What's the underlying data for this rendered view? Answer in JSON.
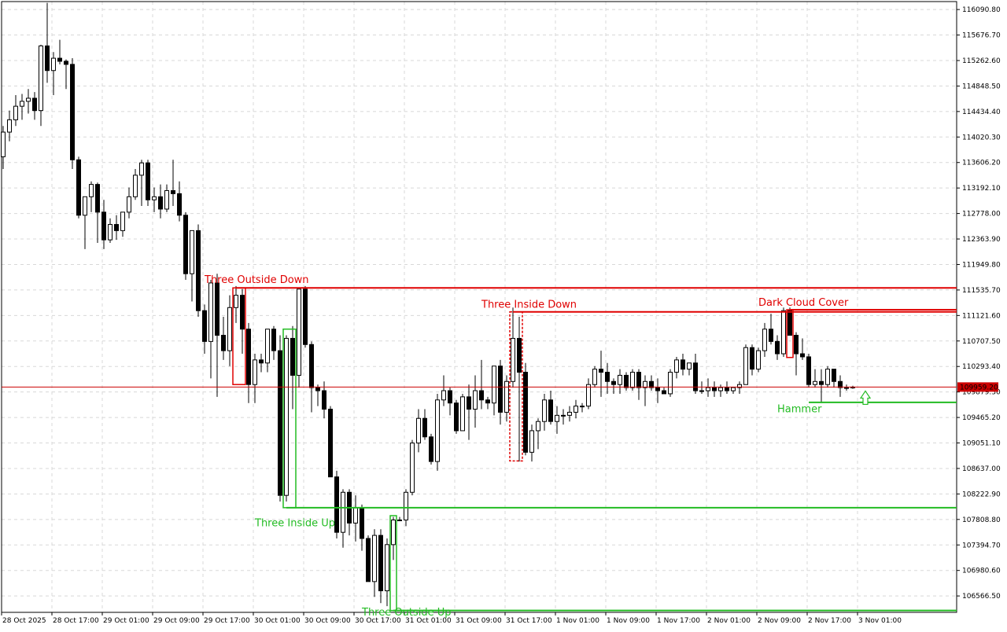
{
  "chart_data": {
    "type": "candlestick",
    "title": "",
    "xlabel": "",
    "ylabel": "",
    "ylim": [
      106300,
      116220
    ],
    "grid": true,
    "y_ticks": [
      "116090.80",
      "115676.70",
      "115262.60",
      "114848.50",
      "114434.40",
      "114020.30",
      "113606.20",
      "113192.10",
      "112778.00",
      "112363.90",
      "111949.80",
      "111535.70",
      "111121.60",
      "110707.50",
      "110293.40",
      "109879.30",
      "109465.20",
      "109051.10",
      "108637.00",
      "108222.90",
      "107808.80",
      "107394.70",
      "106980.60",
      "106566.50"
    ],
    "x_ticks": [
      "28 Oct 2025",
      "28 Oct 17:00",
      "29 Oct 01:00",
      "29 Oct 09:00",
      "29 Oct 17:00",
      "30 Oct 01:00",
      "30 Oct 09:00",
      "30 Oct 17:00",
      "31 Oct 01:00",
      "31 Oct 09:00",
      "31 Oct 17:00",
      "1 Nov 01:00",
      "1 Nov 09:00",
      "1 Nov 17:00",
      "2 Nov 01:00",
      "2 Nov 09:00",
      "2 Nov 17:00",
      "3 Nov 01:00"
    ],
    "current_price": "109959.20",
    "candles": [
      [
        113700,
        114200,
        113500,
        114100
      ],
      [
        114100,
        114450,
        113950,
        114300
      ],
      [
        114300,
        114700,
        114200,
        114520
      ],
      [
        114520,
        114720,
        114300,
        114600
      ],
      [
        114600,
        114800,
        114400,
        114650
      ],
      [
        114650,
        114750,
        114300,
        114450
      ],
      [
        114450,
        115520,
        114200,
        115500
      ],
      [
        115500,
        116200,
        114900,
        115100
      ],
      [
        115100,
        115400,
        114700,
        115300
      ],
      [
        115300,
        115600,
        115200,
        115250
      ],
      [
        115250,
        115280,
        114800,
        115200
      ],
      [
        115200,
        115300,
        113500,
        113650
      ],
      [
        113650,
        113700,
        112700,
        112750
      ],
      [
        112750,
        113000,
        112200,
        113050
      ],
      [
        113050,
        113300,
        112800,
        113250
      ],
      [
        113250,
        113280,
        112300,
        112800
      ],
      [
        112800,
        113000,
        112200,
        112350
      ],
      [
        112350,
        112700,
        112300,
        112600
      ],
      [
        112600,
        112750,
        112350,
        112500
      ],
      [
        112500,
        112800,
        112400,
        112800
      ],
      [
        112800,
        113200,
        112700,
        113050
      ],
      [
        113050,
        113500,
        113000,
        113400
      ],
      [
        113400,
        113650,
        112900,
        113600
      ],
      [
        113600,
        113650,
        112900,
        113000
      ],
      [
        113000,
        113200,
        112800,
        113050
      ],
      [
        113050,
        113250,
        112700,
        112850
      ],
      [
        112850,
        113250,
        112800,
        113150
      ],
      [
        113150,
        113650,
        112900,
        113100
      ],
      [
        113100,
        113300,
        112650,
        112750
      ],
      [
        112750,
        112800,
        111700,
        111800
      ],
      [
        111800,
        112450,
        111350,
        112500
      ],
      [
        112500,
        112600,
        111100,
        111200
      ],
      [
        111200,
        111300,
        110500,
        110700
      ],
      [
        110700,
        111700,
        110100,
        111650
      ],
      [
        111650,
        111800,
        109800,
        110800
      ],
      [
        110800,
        111100,
        110400,
        110550
      ],
      [
        110550,
        111450,
        110300,
        111250
      ],
      [
        111250,
        111600,
        111000,
        111450
      ],
      [
        111450,
        111550,
        110500,
        110900
      ],
      [
        110900,
        111000,
        109700,
        110000
      ],
      [
        110000,
        110500,
        109700,
        110400
      ],
      [
        110400,
        110500,
        110200,
        110350
      ],
      [
        110350,
        110900,
        110200,
        110900
      ],
      [
        110900,
        110950,
        110400,
        110550
      ],
      [
        110550,
        110800,
        108100,
        108200
      ],
      [
        108200,
        110800,
        108100,
        110750
      ],
      [
        110750,
        110950,
        109600,
        110150
      ],
      [
        110150,
        111550,
        109950,
        111550
      ],
      [
        111550,
        111600,
        110600,
        110650
      ],
      [
        110650,
        110700,
        109550,
        109950
      ],
      [
        109950,
        110000,
        109650,
        109900
      ],
      [
        109900,
        110050,
        109450,
        109600
      ],
      [
        109600,
        109650,
        108500,
        108500
      ],
      [
        108500,
        108600,
        107500,
        107600
      ],
      [
        107600,
        108300,
        107350,
        108250
      ],
      [
        108250,
        108300,
        107550,
        107750
      ],
      [
        107750,
        108200,
        107450,
        108000
      ],
      [
        108000,
        108050,
        107300,
        107500
      ],
      [
        107500,
        107550,
        106800,
        106800
      ],
      [
        106800,
        107650,
        106550,
        107550
      ],
      [
        107550,
        107650,
        106450,
        106650
      ],
      [
        106650,
        107500,
        106400,
        107400
      ],
      [
        107400,
        107850,
        107150,
        107800
      ],
      [
        107800,
        107850,
        107800,
        107800
      ],
      [
        107800,
        108300,
        107700,
        108250
      ],
      [
        108250,
        109100,
        108200,
        109050
      ],
      [
        109050,
        109600,
        108900,
        109450
      ],
      [
        109450,
        109600,
        109100,
        109150
      ],
      [
        109150,
        109200,
        108700,
        108750
      ],
      [
        108750,
        109850,
        108600,
        109750
      ],
      [
        109750,
        110150,
        109650,
        109900
      ],
      [
        109900,
        109950,
        109500,
        109700
      ],
      [
        109700,
        109750,
        109200,
        109250
      ],
      [
        109250,
        109850,
        109250,
        109800
      ],
      [
        109800,
        110000,
        109100,
        109600
      ],
      [
        109600,
        110150,
        109300,
        109900
      ],
      [
        109900,
        110400,
        109600,
        109750
      ],
      [
        109750,
        109800,
        109600,
        109700
      ],
      [
        109700,
        110300,
        109500,
        110300
      ],
      [
        110300,
        110400,
        109350,
        109550
      ],
      [
        109550,
        110150,
        109400,
        110050
      ],
      [
        110050,
        111250,
        109950,
        110750
      ],
      [
        110750,
        111100,
        108750,
        110200
      ],
      [
        110200,
        110350,
        108850,
        108900
      ],
      [
        108900,
        109350,
        108750,
        109250
      ],
      [
        109250,
        109450,
        108950,
        109400
      ],
      [
        109400,
        109850,
        109250,
        109750
      ],
      [
        109750,
        109900,
        109350,
        109400
      ],
      [
        109400,
        109650,
        109200,
        109500
      ],
      [
        109500,
        109600,
        109350,
        109500
      ],
      [
        109500,
        109650,
        109400,
        109550
      ],
      [
        109550,
        109750,
        109450,
        109650
      ],
      [
        109650,
        109700,
        109550,
        109650
      ],
      [
        109650,
        110100,
        109600,
        110000
      ],
      [
        110000,
        110300,
        109950,
        110250
      ],
      [
        110250,
        110550,
        109800,
        110200
      ],
      [
        110200,
        110350,
        109850,
        110050
      ],
      [
        110050,
        110100,
        109850,
        110000
      ],
      [
        110000,
        110250,
        109850,
        110150
      ],
      [
        110150,
        110200,
        109900,
        109950
      ],
      [
        109950,
        110250,
        109900,
        110200
      ],
      [
        110200,
        110250,
        109750,
        109950
      ],
      [
        109950,
        110150,
        109650,
        110050
      ],
      [
        110050,
        110150,
        109900,
        109950
      ],
      [
        109950,
        110100,
        109700,
        109900
      ],
      [
        109900,
        109950,
        109850,
        109850
      ],
      [
        109850,
        110250,
        109800,
        110200
      ],
      [
        110200,
        110450,
        110100,
        110400
      ],
      [
        110400,
        110500,
        110150,
        110250
      ],
      [
        110250,
        110350,
        110150,
        110350
      ],
      [
        110350,
        110500,
        109850,
        109900
      ],
      [
        109900,
        110050,
        109850,
        109900
      ],
      [
        109900,
        110100,
        109800,
        109950
      ],
      [
        109950,
        110050,
        109800,
        109900
      ],
      [
        109900,
        110000,
        109800,
        109950
      ],
      [
        109950,
        110050,
        109850,
        109900
      ],
      [
        109900,
        109950,
        109850,
        109950
      ],
      [
        109950,
        110050,
        109850,
        110000
      ],
      [
        110000,
        110650,
        110000,
        110600
      ],
      [
        110600,
        110650,
        110150,
        110250
      ],
      [
        110250,
        110600,
        110200,
        110550
      ],
      [
        110550,
        111000,
        110450,
        110900
      ],
      [
        110900,
        111150,
        110650,
        110700
      ],
      [
        110700,
        110800,
        110400,
        110500
      ],
      [
        110500,
        111250,
        110450,
        111200
      ],
      [
        111200,
        111250,
        110850,
        110800
      ],
      [
        110800,
        110850,
        110150,
        110500
      ],
      [
        110500,
        110750,
        110400,
        110450
      ],
      [
        110450,
        110500,
        109950,
        110000
      ],
      [
        110000,
        110250,
        109950,
        110050
      ],
      [
        110050,
        110250,
        109700,
        110000
      ],
      [
        110000,
        110300,
        109950,
        110250
      ],
      [
        110250,
        110250,
        109950,
        110050
      ],
      [
        110050,
        110150,
        109800,
        109950
      ],
      [
        109950,
        110000,
        109900,
        109950
      ],
      [
        109950,
        109980,
        109930,
        109959
      ]
    ],
    "patterns": [
      {
        "name": "Three Outside Down",
        "color": "#e00000",
        "candle": 37,
        "level": 111570,
        "label_price": 111650,
        "box": [
          110000,
          111570
        ],
        "box_from": 37,
        "box_to": 38
      },
      {
        "name": "Three Inside Down",
        "color": "#e00000",
        "candle": 81,
        "level": 111180,
        "label_price": 111250,
        "box": [
          108760,
          111180
        ],
        "box_from": 81,
        "box_to": 82,
        "dashed": true
      },
      {
        "name": "Dark Cloud Cover",
        "color": "#e00000",
        "candle": 125,
        "level": 111215,
        "label_price": 111280,
        "box": [
          110440,
          111215
        ],
        "box_from": 125,
        "box_to": 125
      },
      {
        "name": "Three Inside Up",
        "color": "#22bb22",
        "candle": 45,
        "level": 108000,
        "label_price": 107700,
        "box": [
          108000,
          110900
        ],
        "box_from": 45,
        "box_to": 46
      },
      {
        "name": "Three Outside Up",
        "color": "#22bb22",
        "candle": 62,
        "level": 106330,
        "label_price": 106250,
        "box": [
          106330,
          107870
        ],
        "box_from": 62,
        "box_to": 62
      },
      {
        "name": "Hammer",
        "color": "#22bb22",
        "candle": 128,
        "level": 109710,
        "label_price": 109550,
        "box": null
      }
    ]
  }
}
